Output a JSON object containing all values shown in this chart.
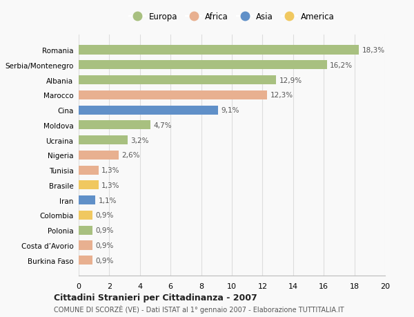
{
  "categories": [
    "Romania",
    "Serbia/Montenegro",
    "Albania",
    "Marocco",
    "Cina",
    "Moldova",
    "Ucraina",
    "Nigeria",
    "Tunisia",
    "Brasile",
    "Iran",
    "Colombia",
    "Polonia",
    "Costa d’Avorio",
    "Burkina Faso"
  ],
  "values": [
    18.3,
    16.2,
    12.9,
    12.3,
    9.1,
    4.7,
    3.2,
    2.6,
    1.3,
    1.3,
    1.1,
    0.9,
    0.9,
    0.9,
    0.9
  ],
  "labels": [
    "18,3%",
    "16,2%",
    "12,9%",
    "12,3%",
    "9,1%",
    "4,7%",
    "3,2%",
    "2,6%",
    "1,3%",
    "1,3%",
    "1,1%",
    "0,9%",
    "0,9%",
    "0,9%",
    "0,9%"
  ],
  "continents": [
    "Europa",
    "Europa",
    "Europa",
    "Africa",
    "Asia",
    "Europa",
    "Europa",
    "Africa",
    "Africa",
    "America",
    "Asia",
    "America",
    "Europa",
    "Africa",
    "Africa"
  ],
  "continent_colors": {
    "Europa": "#a8c080",
    "Africa": "#e8b090",
    "Asia": "#6090c8",
    "America": "#f0c860"
  },
  "legend_order": [
    "Europa",
    "Africa",
    "Asia",
    "America"
  ],
  "title": "Cittadini Stranieri per Cittadinanza - 2007",
  "subtitle": "COMUNE DI SCORZÈ (VE) - Dati ISTAT al 1° gennaio 2007 - Elaborazione TUTTITALIA.IT",
  "xlim": [
    0,
    20
  ],
  "xticks": [
    0,
    2,
    4,
    6,
    8,
    10,
    12,
    14,
    16,
    18,
    20
  ],
  "background_color": "#f9f9f9",
  "grid_color": "#dddddd"
}
